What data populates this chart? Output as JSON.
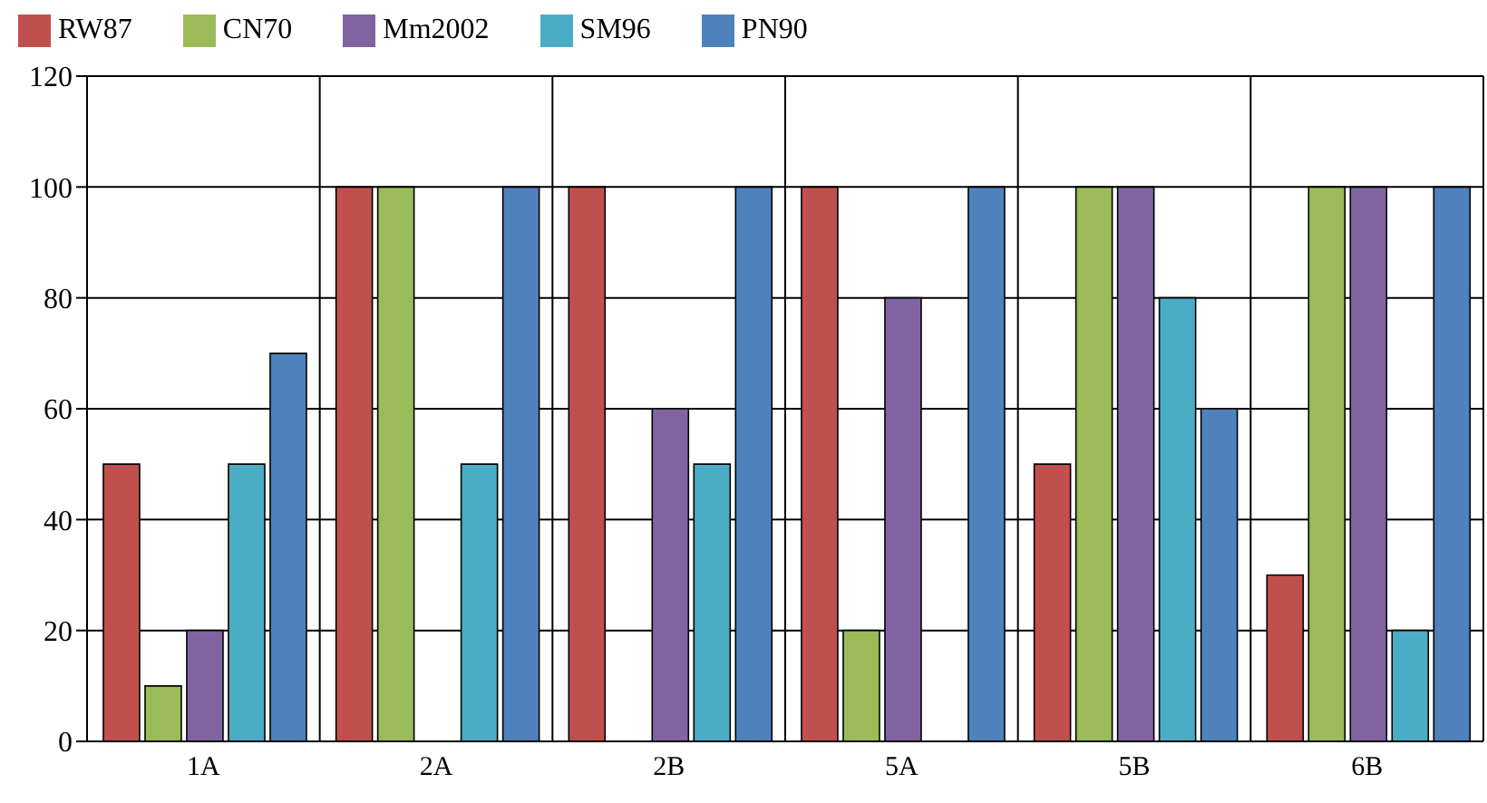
{
  "chart_data": {
    "type": "bar",
    "categories": [
      "1A",
      "2A",
      "2B",
      "5A",
      "5B",
      "6B"
    ],
    "series": [
      {
        "name": "RW87",
        "color": "#c0504d",
        "values": [
          50,
          100,
          100,
          100,
          50,
          30
        ]
      },
      {
        "name": "CN70",
        "color": "#9bbb59",
        "values": [
          10,
          100,
          0,
          20,
          100,
          100
        ]
      },
      {
        "name": "Mm2002",
        "color": "#8064a2",
        "values": [
          20,
          0,
          60,
          80,
          100,
          100
        ]
      },
      {
        "name": "SM96",
        "color": "#4bacc6",
        "values": [
          50,
          50,
          50,
          0,
          80,
          20
        ]
      },
      {
        "name": "PN90",
        "color": "#4f81bd",
        "values": [
          70,
          100,
          100,
          100,
          60,
          100
        ]
      }
    ],
    "ylim": [
      0,
      120
    ],
    "yticks": [
      0,
      20,
      40,
      60,
      80,
      100,
      120
    ],
    "grid": true,
    "legend": "top left"
  }
}
